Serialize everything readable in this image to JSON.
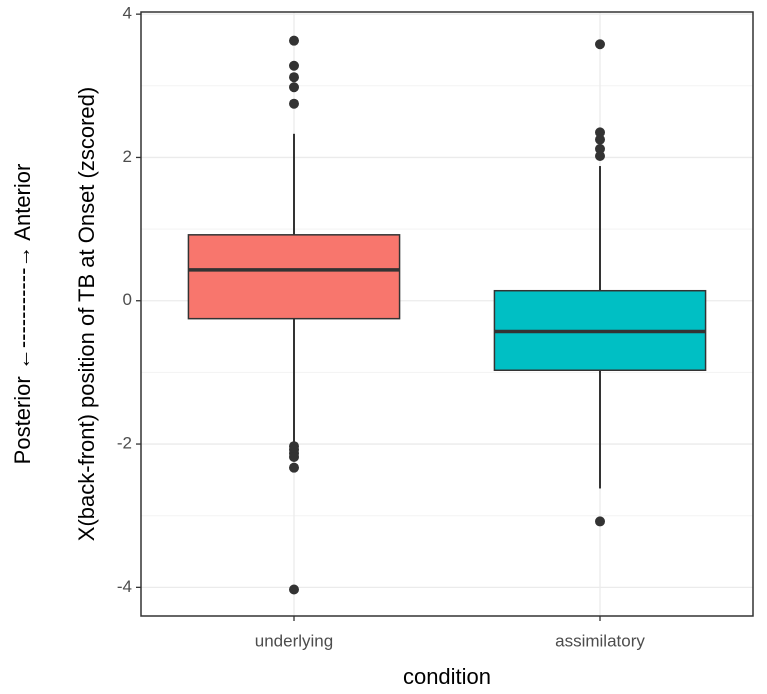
{
  "chart_data": {
    "type": "box",
    "x_label": "condition",
    "y_label": "X(back-front) position of TB at Onset (zscored)",
    "annotation": "Posterior ←-----------→ Anterior",
    "categories": [
      "underlying",
      "assimilatory"
    ],
    "boxes": [
      {
        "color": "#F8766D",
        "whisker_low": -2.0,
        "q1": -0.25,
        "median": 0.43,
        "q3": 0.92,
        "whisker_high": 2.33,
        "outliers": [
          3.63,
          3.28,
          3.12,
          2.98,
          2.75,
          -2.03,
          -2.08,
          -2.13,
          -2.18,
          -2.33,
          -4.03
        ]
      },
      {
        "color": "#00BFC4",
        "whisker_low": -2.62,
        "q1": -0.97,
        "median": -0.43,
        "q3": 0.14,
        "whisker_high": 1.88,
        "outliers": [
          3.58,
          2.35,
          2.25,
          2.12,
          2.02,
          -3.08
        ]
      }
    ],
    "ylim": [
      -4.4,
      4.03
    ],
    "yticks": [
      -4,
      -2,
      0,
      2,
      4
    ],
    "y_minor_ticks": [
      -3,
      -1,
      1,
      3
    ],
    "grid": true
  }
}
